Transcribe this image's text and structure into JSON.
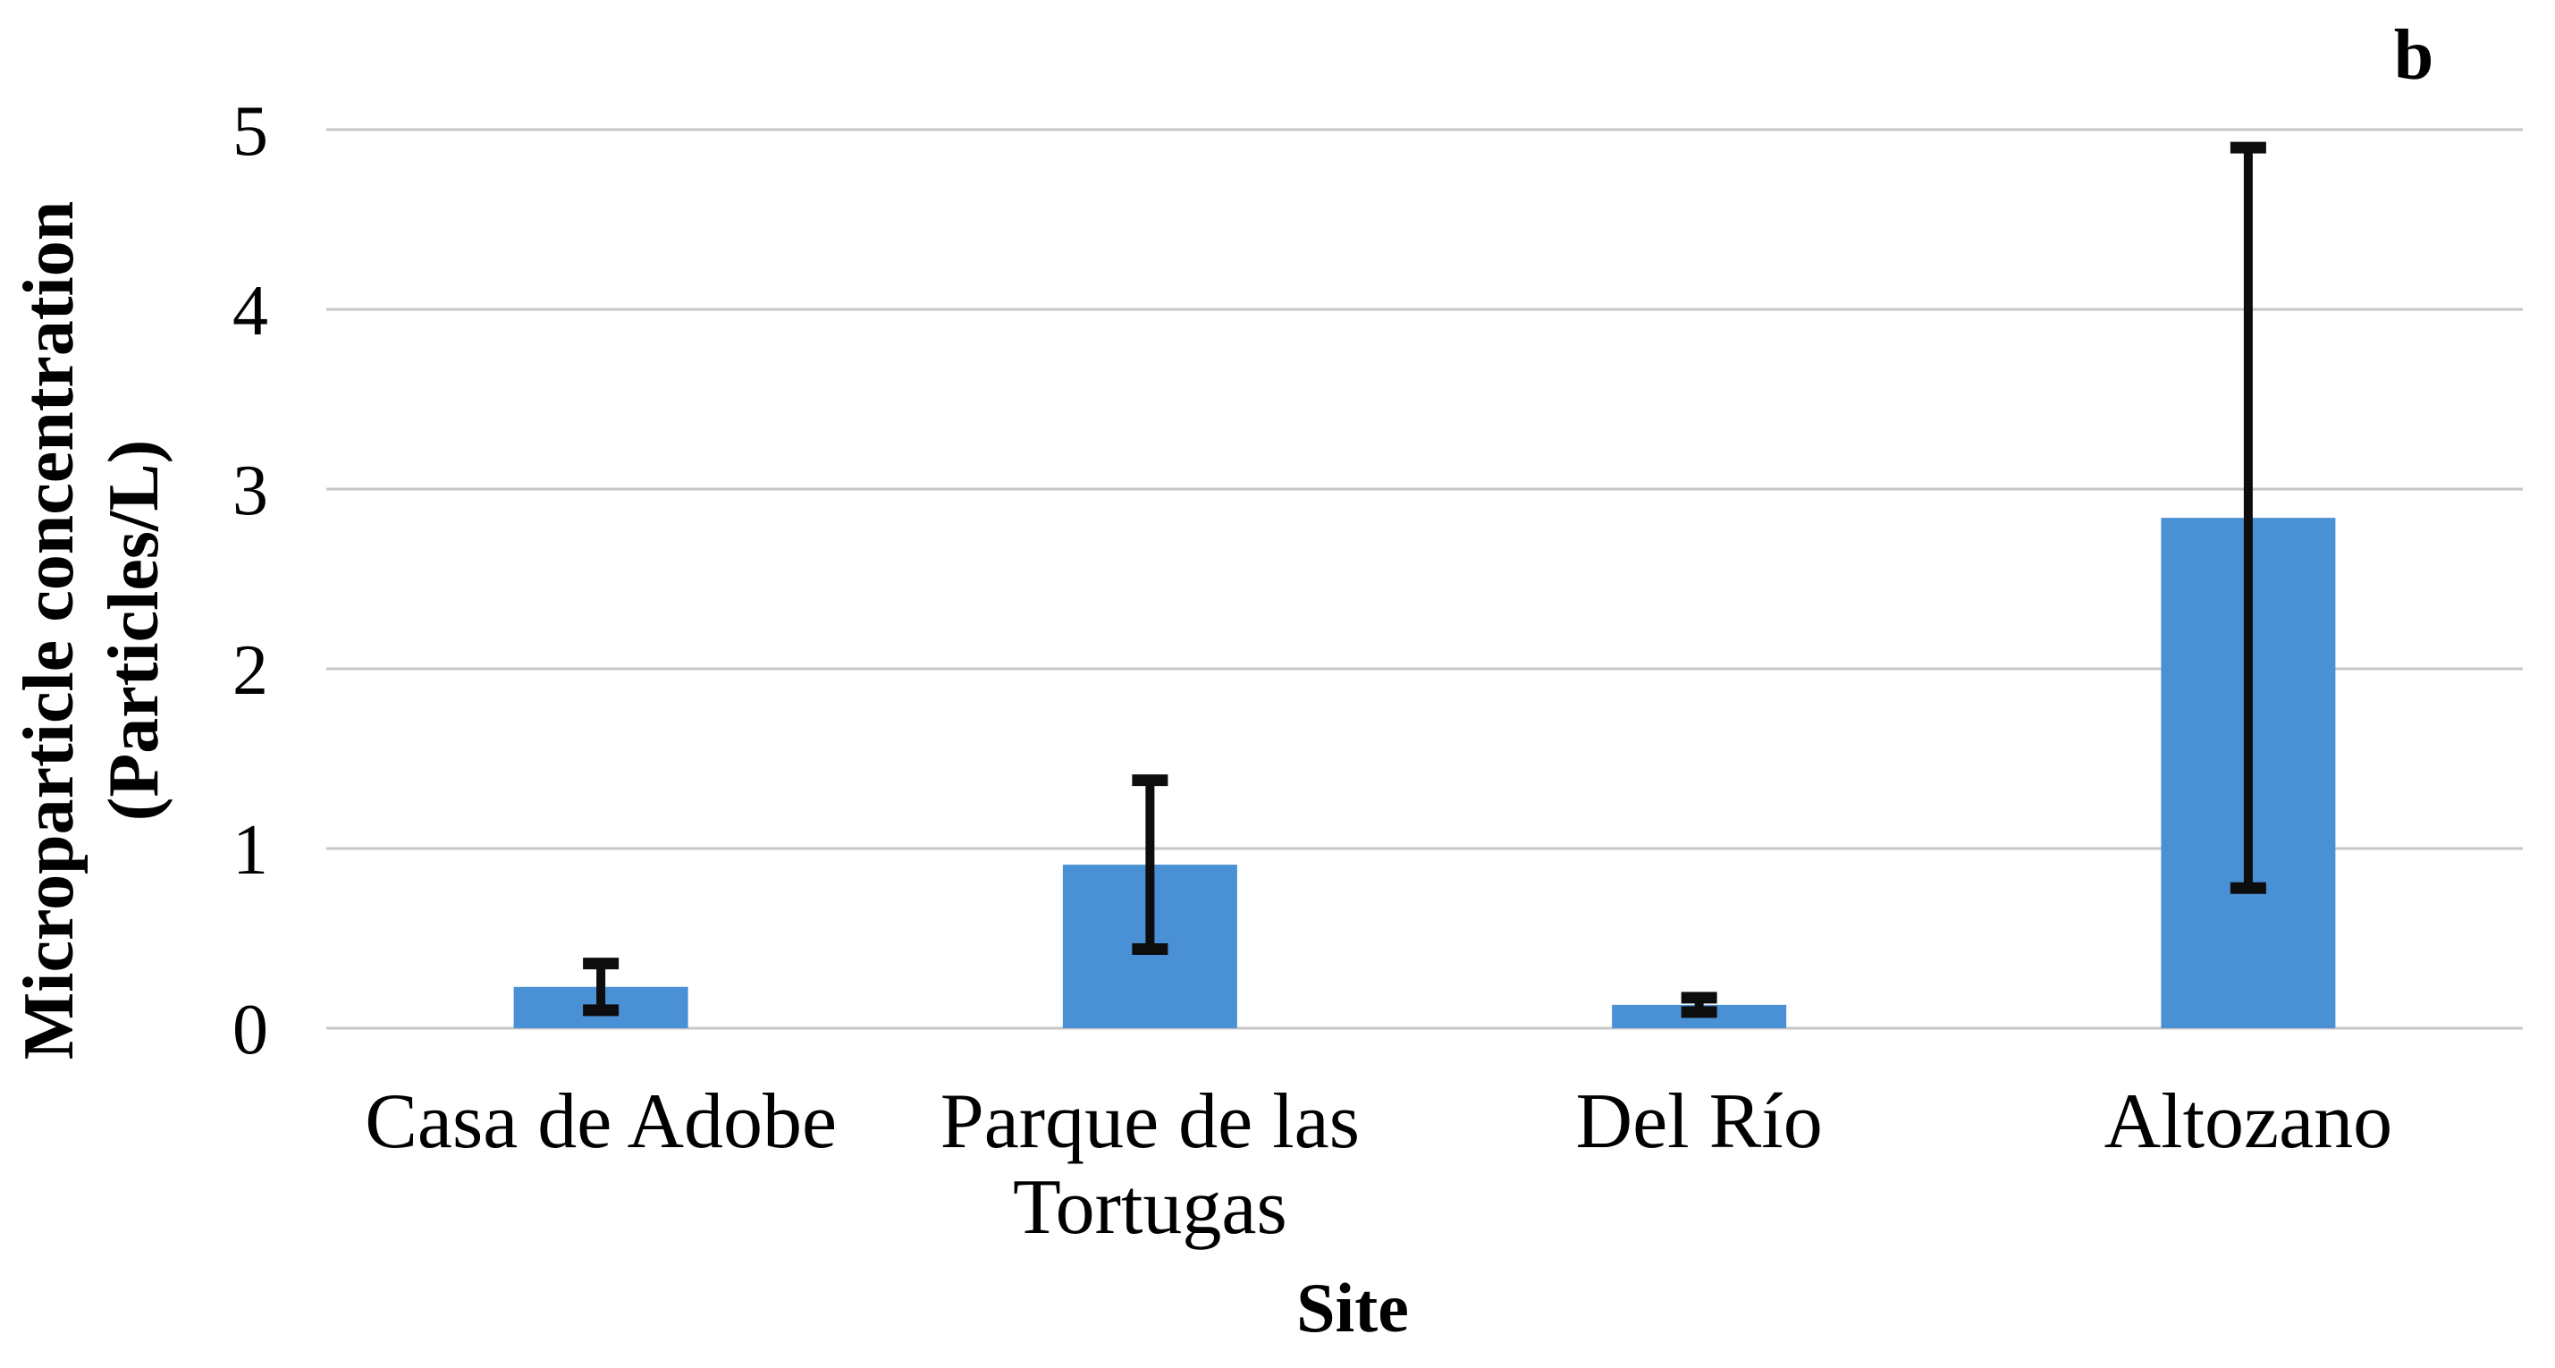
{
  "page": {
    "background_color": "#ffffff",
    "text_color": "#000000"
  },
  "chart_data": {
    "type": "bar",
    "title": "",
    "panel_label": "b",
    "xlabel": "Site",
    "ylabel_line1": "Microparticle concentration",
    "ylabel_line2": "(Particles/L)",
    "categories": [
      "Casa de Adobe",
      "Parque de las\nTortugas",
      "Del Río",
      "Altozano"
    ],
    "values": [
      0.23,
      0.91,
      0.13,
      2.84
    ],
    "error_plus_minus": [
      0.13,
      0.47,
      0.04,
      2.06
    ],
    "error_low": [
      0.1,
      0.44,
      0.09,
      0.78
    ],
    "error_high": [
      0.36,
      1.38,
      0.17,
      4.9
    ],
    "yticks": [
      0,
      1,
      2,
      3,
      4,
      5
    ],
    "ylim": [
      0,
      5
    ],
    "grid": "horizontal-only",
    "legend": false,
    "colors": {
      "bar": "#4a90d5",
      "error_bar": "#0d0d0d",
      "gridline": "#c6c6c6",
      "text": "#000000",
      "background": "#ffffff"
    }
  }
}
